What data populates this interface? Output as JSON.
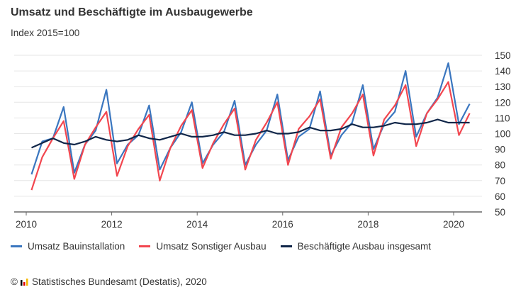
{
  "chart_data": {
    "type": "line",
    "title": "Umsatz und Beschäftigte im Ausbaugewerbe",
    "subtitle": "Index 2015=100",
    "xlabel": "",
    "ylabel": "",
    "x_ticks": [
      "2010",
      "2012",
      "2014",
      "2016",
      "2018",
      "2020"
    ],
    "y_ticks": [
      50,
      60,
      70,
      80,
      90,
      100,
      110,
      120,
      130,
      140,
      150
    ],
    "ylim": [
      50,
      150
    ],
    "x_start": 2010.125,
    "x_step": 0.25,
    "grid": true,
    "legend_position": "bottom",
    "series": [
      {
        "name": "Umsatz Bauinstallation",
        "color": "#3a76bf",
        "values": [
          74,
          95,
          97,
          117,
          75,
          93,
          102,
          128,
          81,
          93,
          99,
          118,
          77,
          91,
          101,
          120,
          81,
          93,
          101,
          121,
          80,
          93,
          102,
          125,
          83,
          98,
          103,
          127,
          86,
          99,
          107,
          131,
          90,
          106,
          114,
          140,
          98,
          113,
          123,
          145,
          106,
          119
        ]
      },
      {
        "name": "Umsatz Sonstiger Ausbau",
        "color": "#f2464f",
        "values": [
          64,
          85,
          97,
          108,
          71,
          93,
          104,
          114,
          73,
          92,
          103,
          112,
          70,
          91,
          105,
          115,
          78,
          94,
          106,
          116,
          77,
          96,
          107,
          120,
          80,
          103,
          111,
          122,
          84,
          104,
          113,
          125,
          86,
          109,
          118,
          131,
          92,
          113,
          122,
          133,
          99,
          113
        ]
      },
      {
        "name": "Beschäftigte Ausbau insgesamt",
        "color": "#0f2548",
        "values": [
          91,
          94,
          97,
          94,
          93,
          95,
          98,
          96,
          95,
          96,
          99,
          97,
          96,
          98,
          100,
          98,
          98,
          99,
          101,
          99,
          99,
          100,
          102,
          100,
          100,
          101,
          104,
          102,
          102,
          103,
          106,
          104,
          104,
          105,
          107,
          106,
          106,
          107,
          109,
          107,
          107,
          107
        ]
      }
    ]
  },
  "footer": {
    "copyright": "©",
    "source": "Statistisches Bundesamt (Destatis), 2020"
  }
}
